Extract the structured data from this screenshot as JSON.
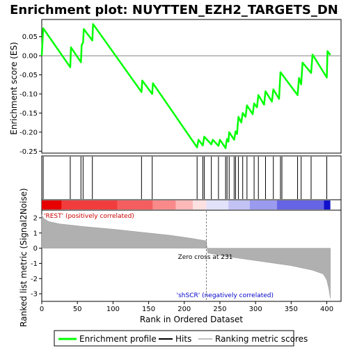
{
  "chart_data": {
    "type": "line",
    "title": "Enrichment plot: NUYTTEN_EZH2_TARGETS_DN",
    "xlabel": "Rank in Ordered Dataset",
    "ylabel_top": "Enrichment score (ES)",
    "ylabel_bottom": "Ranked list metric (Signal2Noise)",
    "xlim": [
      0,
      420
    ],
    "x_ticks": [
      0,
      50,
      100,
      150,
      200,
      250,
      300,
      350,
      400
    ],
    "es_ylim": [
      -0.255,
      0.095
    ],
    "es_ticks": [
      0.05,
      0.0,
      -0.05,
      -0.1,
      -0.15,
      -0.2,
      -0.25
    ],
    "es_tick_labels": [
      "0.05",
      "0.00",
      "-0.05",
      "-0.10",
      "-0.15",
      "-0.20",
      "-0.25"
    ],
    "metric_ylim": [
      -3.5,
      2.5
    ],
    "metric_ticks": [
      2,
      1,
      0,
      -1,
      -2,
      -3
    ],
    "series": [
      {
        "name": "Enrichment profile",
        "color": "#00ff00",
        "points": [
          [
            0,
            0.0
          ],
          [
            2,
            0.072
          ],
          [
            40,
            -0.03
          ],
          [
            41,
            0.022
          ],
          [
            55,
            -0.017
          ],
          [
            56,
            0.028
          ],
          [
            58,
            0.035
          ],
          [
            59,
            0.07
          ],
          [
            71,
            0.04
          ],
          [
            72,
            0.083
          ],
          [
            140,
            -0.095
          ],
          [
            141,
            -0.065
          ],
          [
            155,
            -0.1
          ],
          [
            156,
            -0.072
          ],
          [
            218,
            -0.24
          ],
          [
            220,
            -0.22
          ],
          [
            226,
            -0.235
          ],
          [
            228,
            -0.212
          ],
          [
            238,
            -0.232
          ],
          [
            240,
            -0.22
          ],
          [
            248,
            -0.236
          ],
          [
            250,
            -0.22
          ],
          [
            258,
            -0.242
          ],
          [
            259,
            -0.228
          ],
          [
            260,
            -0.218
          ],
          [
            262,
            -0.225
          ],
          [
            263,
            -0.2
          ],
          [
            270,
            -0.22
          ],
          [
            272,
            -0.198
          ],
          [
            274,
            -0.205
          ],
          [
            276,
            -0.16
          ],
          [
            280,
            -0.175
          ],
          [
            282,
            -0.15
          ],
          [
            286,
            -0.16
          ],
          [
            288,
            -0.13
          ],
          [
            296,
            -0.153
          ],
          [
            298,
            -0.125
          ],
          [
            302,
            -0.135
          ],
          [
            304,
            -0.103
          ],
          [
            312,
            -0.128
          ],
          [
            314,
            -0.093
          ],
          [
            323,
            -0.12
          ],
          [
            325,
            -0.088
          ],
          [
            333,
            -0.113
          ],
          [
            335,
            -0.043
          ],
          [
            359,
            -0.103
          ],
          [
            361,
            -0.058
          ],
          [
            364,
            -0.075
          ],
          [
            366,
            -0.018
          ],
          [
            378,
            -0.045
          ],
          [
            380,
            0.003
          ],
          [
            400,
            -0.057
          ],
          [
            401,
            0.012
          ],
          [
            405,
            0.002
          ]
        ]
      }
    ],
    "hits": [
      2,
      40,
      55,
      58,
      71,
      140,
      155,
      218,
      226,
      228,
      238,
      248,
      258,
      260,
      263,
      270,
      272,
      276,
      282,
      288,
      298,
      304,
      314,
      325,
      335,
      337,
      359,
      364,
      378,
      400
    ],
    "n_genes": 405,
    "zero_cross_rank": 231,
    "metric_profile": [
      [
        0,
        2.2
      ],
      [
        3,
        1.95
      ],
      [
        10,
        1.75
      ],
      [
        25,
        1.6
      ],
      [
        60,
        1.42
      ],
      [
        100,
        1.25
      ],
      [
        140,
        1.05
      ],
      [
        180,
        0.85
      ],
      [
        210,
        0.65
      ],
      [
        231,
        0.48
      ],
      [
        232,
        0.0
      ],
      [
        233,
        -0.32
      ],
      [
        260,
        -0.55
      ],
      [
        290,
        -0.75
      ],
      [
        320,
        -0.95
      ],
      [
        350,
        -1.15
      ],
      [
        380,
        -1.45
      ],
      [
        395,
        -1.7
      ],
      [
        400,
        -2.1
      ],
      [
        403,
        -2.7
      ],
      [
        405,
        -3.3
      ]
    ],
    "rank_bar_colors": [
      {
        "from": 0,
        "to": 28,
        "color": "#e60000"
      },
      {
        "from": 28,
        "to": 106,
        "color": "#f03c3c"
      },
      {
        "from": 106,
        "to": 156,
        "color": "#f55e5e"
      },
      {
        "from": 156,
        "to": 188,
        "color": "#fa8a8a"
      },
      {
        "from": 188,
        "to": 212,
        "color": "#fdb8b8"
      },
      {
        "from": 212,
        "to": 231,
        "color": "#fde0e0"
      },
      {
        "from": 231,
        "to": 262,
        "color": "#e2e2fb"
      },
      {
        "from": 262,
        "to": 292,
        "color": "#c2c2f5"
      },
      {
        "from": 292,
        "to": 330,
        "color": "#9a9aee"
      },
      {
        "from": 330,
        "to": 396,
        "color": "#6464e4"
      },
      {
        "from": 396,
        "to": 405,
        "color": "#1010cc"
      }
    ],
    "annotations": {
      "rest_label": "'REST' (positively correlated)",
      "shscr_label": "'shSCR' (negatively correlated)",
      "zero_cross_label": "Zero cross at 231"
    },
    "colors": {
      "es_line": "#00ff00",
      "hit_line": "#000000",
      "metric_fill": "#b0b0b0",
      "rest_text": "#cc0000",
      "shscr_text": "#0000cc",
      "zero_line": "#808080"
    },
    "legend": {
      "placement": "bottom",
      "items": [
        {
          "label": "Enrichment profile",
          "kind": "line",
          "color": "#00ff00"
        },
        {
          "label": "Hits",
          "kind": "line",
          "color": "#000000"
        },
        {
          "label": "Ranking metric scores",
          "kind": "line",
          "color": "#c0c0c0"
        }
      ]
    }
  }
}
